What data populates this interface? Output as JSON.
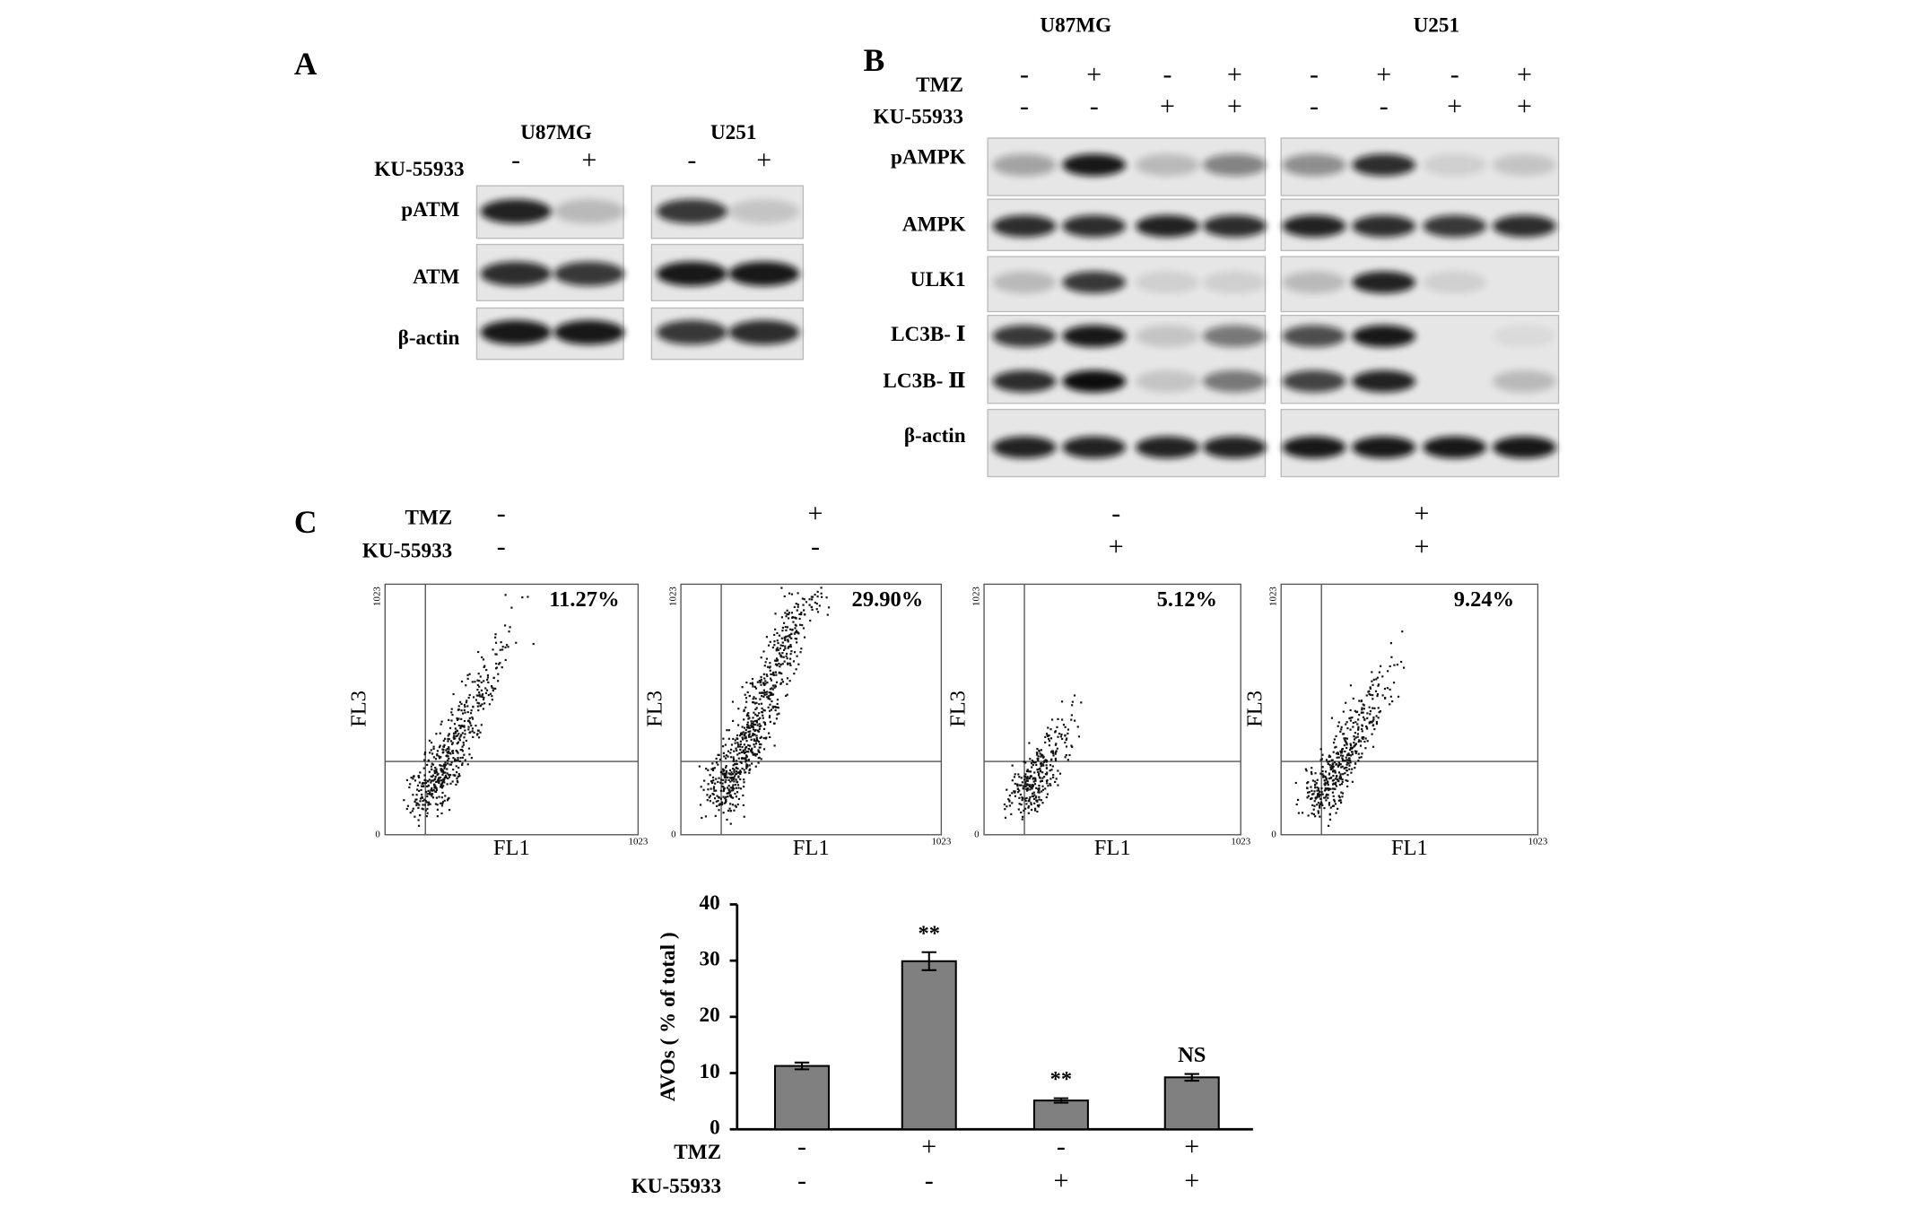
{
  "panel_a": {
    "label": "A",
    "treatment": "KU-55933",
    "cell_lines": [
      {
        "name": "U87MG",
        "signs": [
          "-",
          "+"
        ]
      },
      {
        "name": "U251",
        "signs": [
          "-",
          "+"
        ]
      }
    ],
    "proteins": [
      "pATM",
      "ATM",
      "β-actin"
    ]
  },
  "panel_b": {
    "label": "B",
    "cell_lines": [
      "U87MG",
      "U251"
    ],
    "treatments": [
      {
        "name": "TMZ",
        "signs": [
          "-",
          "+",
          "-",
          "+",
          "-",
          "+",
          "-",
          "+"
        ]
      },
      {
        "name": "KU-55933",
        "signs": [
          "-",
          "-",
          "+",
          "+",
          "-",
          "-",
          "+",
          "+"
        ]
      }
    ],
    "proteins": [
      "pAMPK",
      "AMPK",
      "ULK1",
      "LC3B- Ⅰ",
      "LC3B- Ⅱ",
      "β-actin"
    ]
  },
  "panel_c": {
    "label": "C",
    "treatments": [
      {
        "name": "TMZ",
        "signs": [
          "-",
          "+",
          "-",
          "+"
        ]
      },
      {
        "name": "KU-55933",
        "signs": [
          "-",
          "-",
          "+",
          "+"
        ]
      }
    ],
    "flow_plots": {
      "x_label": "FL1",
      "y_label": "FL3",
      "axis_min": "0",
      "axis_max": "1023",
      "percentages": [
        "11.27%",
        "29.90%",
        "5.12%",
        "9.24%"
      ]
    }
  },
  "chart_data": {
    "type": "bar",
    "ylabel": "AVOs ( % of total )",
    "values": [
      11.27,
      29.9,
      5.12,
      9.24
    ],
    "errors": [
      0.6,
      1.6,
      0.4,
      0.6
    ],
    "value_annotations": [
      null,
      "**",
      "**",
      "NS"
    ],
    "conditions": [
      {
        "name": "TMZ",
        "signs": [
          "-",
          "+",
          "-",
          "+"
        ]
      },
      {
        "name": "KU-55933",
        "signs": [
          "-",
          "-",
          "+",
          "+"
        ]
      }
    ],
    "color": "#808080",
    "ylim": [
      0,
      40
    ],
    "yticks": [
      0,
      10,
      20,
      30,
      40
    ]
  }
}
